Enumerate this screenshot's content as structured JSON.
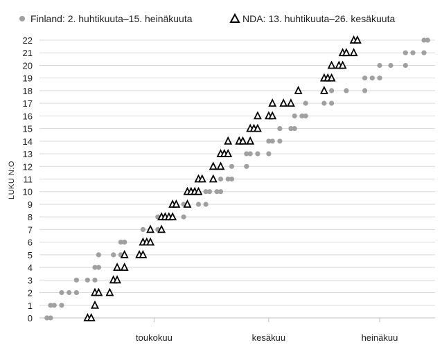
{
  "chart_data": {
    "type": "scatter",
    "title": "",
    "xlabel": "",
    "ylabel": "LUKU N:O",
    "ylim": [
      0,
      22
    ],
    "xlim": [
      "2023-03-31",
      "2023-07-16"
    ],
    "x_ticks": [
      {
        "label": "toukokuu",
        "date": "2023-05-01"
      },
      {
        "label": "kesäkuu",
        "date": "2023-06-01"
      },
      {
        "label": "heinäkuu",
        "date": "2023-07-01"
      }
    ],
    "y_ticks": [
      0,
      1,
      2,
      3,
      4,
      5,
      6,
      7,
      8,
      9,
      10,
      11,
      12,
      13,
      14,
      15,
      16,
      17,
      18,
      19,
      20,
      21,
      22
    ],
    "grid": "horizontal",
    "legend_position": "top",
    "series": [
      {
        "name": "Finland: 2. huhtikuuta–15. heinäkuuta",
        "marker": "circle",
        "color": "#a0a0a0",
        "points": [
          [
            "2023-04-02",
            0
          ],
          [
            "2023-04-03",
            0
          ],
          [
            "2023-04-03",
            1
          ],
          [
            "2023-04-04",
            1
          ],
          [
            "2023-04-06",
            1
          ],
          [
            "2023-04-06",
            2
          ],
          [
            "2023-04-08",
            2
          ],
          [
            "2023-04-10",
            2
          ],
          [
            "2023-04-10",
            3
          ],
          [
            "2023-04-13",
            3
          ],
          [
            "2023-04-15",
            3
          ],
          [
            "2023-04-15",
            4
          ],
          [
            "2023-04-16",
            4
          ],
          [
            "2023-04-16",
            5
          ],
          [
            "2023-04-20",
            5
          ],
          [
            "2023-04-22",
            5
          ],
          [
            "2023-04-22",
            6
          ],
          [
            "2023-04-23",
            6
          ],
          [
            "2023-04-28",
            7
          ],
          [
            "2023-04-30",
            7
          ],
          [
            "2023-05-02",
            7
          ],
          [
            "2023-05-02",
            8
          ],
          [
            "2023-05-03",
            8
          ],
          [
            "2023-05-09",
            8
          ],
          [
            "2023-05-09",
            9
          ],
          [
            "2023-05-10",
            9
          ],
          [
            "2023-05-13",
            9
          ],
          [
            "2023-05-15",
            9
          ],
          [
            "2023-05-15",
            10
          ],
          [
            "2023-05-16",
            10
          ],
          [
            "2023-05-18",
            10
          ],
          [
            "2023-05-19",
            10
          ],
          [
            "2023-05-19",
            11
          ],
          [
            "2023-05-21",
            11
          ],
          [
            "2023-05-22",
            11
          ],
          [
            "2023-05-22",
            12
          ],
          [
            "2023-05-26",
            12
          ],
          [
            "2023-05-26",
            13
          ],
          [
            "2023-05-27",
            13
          ],
          [
            "2023-05-29",
            13
          ],
          [
            "2023-06-01",
            13
          ],
          [
            "2023-06-01",
            14
          ],
          [
            "2023-06-02",
            14
          ],
          [
            "2023-06-04",
            14
          ],
          [
            "2023-06-04",
            15
          ],
          [
            "2023-06-07",
            15
          ],
          [
            "2023-06-08",
            15
          ],
          [
            "2023-06-08",
            16
          ],
          [
            "2023-06-10",
            16
          ],
          [
            "2023-06-11",
            16
          ],
          [
            "2023-06-11",
            17
          ],
          [
            "2023-06-16",
            17
          ],
          [
            "2023-06-18",
            17
          ],
          [
            "2023-06-18",
            18
          ],
          [
            "2023-06-22",
            18
          ],
          [
            "2023-06-27",
            18
          ],
          [
            "2023-06-27",
            19
          ],
          [
            "2023-06-29",
            19
          ],
          [
            "2023-07-01",
            19
          ],
          [
            "2023-07-01",
            20
          ],
          [
            "2023-07-04",
            20
          ],
          [
            "2023-07-08",
            20
          ],
          [
            "2023-07-08",
            21
          ],
          [
            "2023-07-10",
            21
          ],
          [
            "2023-07-13",
            21
          ],
          [
            "2023-07-13",
            22
          ],
          [
            "2023-07-14",
            22
          ]
        ]
      },
      {
        "name": "NDA: 13. huhtikuuta–26. kesäkuuta",
        "marker": "triangle",
        "color": "#000000",
        "points": [
          [
            "2023-04-13",
            0
          ],
          [
            "2023-04-14",
            0
          ],
          [
            "2023-04-15",
            1
          ],
          [
            "2023-04-15",
            2
          ],
          [
            "2023-04-16",
            2
          ],
          [
            "2023-04-19",
            2
          ],
          [
            "2023-04-20",
            3
          ],
          [
            "2023-04-21",
            3
          ],
          [
            "2023-04-21",
            4
          ],
          [
            "2023-04-23",
            4
          ],
          [
            "2023-04-23",
            5
          ],
          [
            "2023-04-27",
            5
          ],
          [
            "2023-04-28",
            5
          ],
          [
            "2023-04-28",
            6
          ],
          [
            "2023-04-29",
            6
          ],
          [
            "2023-04-30",
            6
          ],
          [
            "2023-04-30",
            7
          ],
          [
            "2023-05-03",
            7
          ],
          [
            "2023-05-03",
            8
          ],
          [
            "2023-05-04",
            8
          ],
          [
            "2023-05-05",
            8
          ],
          [
            "2023-05-06",
            8
          ],
          [
            "2023-05-06",
            9
          ],
          [
            "2023-05-07",
            9
          ],
          [
            "2023-05-10",
            9
          ],
          [
            "2023-05-10",
            10
          ],
          [
            "2023-05-11",
            10
          ],
          [
            "2023-05-12",
            10
          ],
          [
            "2023-05-13",
            10
          ],
          [
            "2023-05-13",
            11
          ],
          [
            "2023-05-14",
            11
          ],
          [
            "2023-05-17",
            11
          ],
          [
            "2023-05-17",
            12
          ],
          [
            "2023-05-19",
            12
          ],
          [
            "2023-05-19",
            13
          ],
          [
            "2023-05-20",
            13
          ],
          [
            "2023-05-21",
            13
          ],
          [
            "2023-05-21",
            14
          ],
          [
            "2023-05-24",
            14
          ],
          [
            "2023-05-25",
            14
          ],
          [
            "2023-05-27",
            14
          ],
          [
            "2023-05-27",
            15
          ],
          [
            "2023-05-28",
            15
          ],
          [
            "2023-05-29",
            15
          ],
          [
            "2023-05-29",
            16
          ],
          [
            "2023-06-01",
            16
          ],
          [
            "2023-06-02",
            16
          ],
          [
            "2023-06-02",
            17
          ],
          [
            "2023-06-05",
            17
          ],
          [
            "2023-06-07",
            17
          ],
          [
            "2023-06-09",
            18
          ],
          [
            "2023-06-16",
            18
          ],
          [
            "2023-06-16",
            19
          ],
          [
            "2023-06-17",
            19
          ],
          [
            "2023-06-18",
            19
          ],
          [
            "2023-06-18",
            20
          ],
          [
            "2023-06-20",
            20
          ],
          [
            "2023-06-21",
            20
          ],
          [
            "2023-06-21",
            21
          ],
          [
            "2023-06-22",
            21
          ],
          [
            "2023-06-24",
            21
          ],
          [
            "2023-06-24",
            22
          ],
          [
            "2023-06-25",
            22
          ]
        ]
      }
    ]
  }
}
